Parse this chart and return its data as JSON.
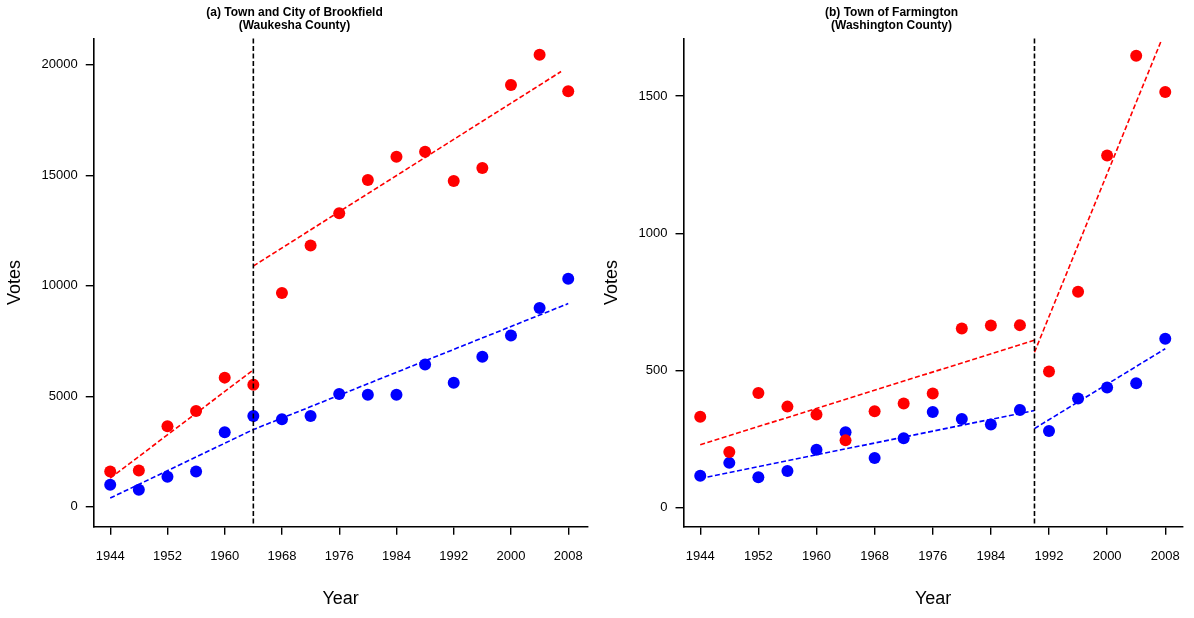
{
  "chart_data": [
    {
      "type": "scatter",
      "title": "(a) Town and City of Brookfield\n(Waukesha County)",
      "xlabel": "Year",
      "ylabel": "Votes",
      "xlim": [
        1941.7,
        2010.7
      ],
      "xticks": [
        1944,
        1952,
        1960,
        1968,
        1976,
        1984,
        1992,
        2000,
        2008
      ],
      "ylim": [
        -900,
        21200
      ],
      "yticks": [
        0,
        5000,
        10000,
        15000,
        20000
      ],
      "grid": false,
      "legend": false,
      "marker": "circle",
      "ref_lines": [
        {
          "axis": "x",
          "value": 1964,
          "color": "#000000",
          "line_style": "dashed"
        }
      ],
      "series": [
        {
          "color": "#ff0000",
          "x": [
            1944,
            1948,
            1952,
            1956,
            1960,
            1964,
            1968,
            1972,
            1976,
            1980,
            1984,
            1988,
            1992,
            1996,
            2000,
            2004,
            2008
          ],
          "values": [
            1600,
            1650,
            3650,
            4340,
            5850,
            5530,
            9680,
            11830,
            13290,
            14790,
            15840,
            16070,
            14750,
            15340,
            19090,
            20460,
            18810
          ]
        },
        {
          "color": "#0000ff",
          "x": [
            1944,
            1948,
            1952,
            1956,
            1960,
            1964,
            1968,
            1972,
            1976,
            1980,
            1984,
            1988,
            1992,
            1996,
            2000,
            2004,
            2008
          ],
          "values": [
            1000,
            780,
            1370,
            1600,
            3380,
            4110,
            3970,
            4110,
            5110,
            5070,
            5070,
            6440,
            5620,
            6800,
            7760,
            9000,
            10320
          ]
        },
        {
          "type": "line",
          "color": "#ff0000",
          "line_style": "dashed",
          "marker": "none",
          "x": [
            1944,
            1964
          ],
          "values": [
            1300,
            6200
          ]
        },
        {
          "type": "line",
          "color": "#ff0000",
          "line_style": "dashed",
          "marker": "none",
          "x": [
            1964,
            2007
          ],
          "values": [
            10900,
            19700
          ]
        },
        {
          "type": "line",
          "color": "#0000ff",
          "line_style": "dashed",
          "marker": "none",
          "x": [
            1944,
            1964,
            2008
          ],
          "values": [
            400,
            3500,
            9200
          ]
        }
      ]
    },
    {
      "type": "scatter",
      "title": "(b) Town of Farmington\n(Washington County)",
      "xlabel": "Year",
      "ylabel": "Votes",
      "xlim": [
        1941.7,
        2010.4
      ],
      "xticks": [
        1944,
        1952,
        1960,
        1968,
        1976,
        1984,
        1992,
        2000,
        2008
      ],
      "ylim": [
        -70,
        1710
      ],
      "yticks": [
        0,
        500,
        1000,
        1500
      ],
      "grid": false,
      "legend": false,
      "marker": "circle",
      "ref_lines": [
        {
          "axis": "x",
          "value": 1990,
          "color": "#000000",
          "line_style": "dashed"
        }
      ],
      "series": [
        {
          "color": "#ff0000",
          "x": [
            1944,
            1948,
            1952,
            1956,
            1960,
            1964,
            1968,
            1972,
            1976,
            1980,
            1984,
            1988,
            1992,
            1996,
            2000,
            2004,
            2008
          ],
          "values": [
            331,
            203,
            418,
            368,
            339,
            245,
            351,
            379,
            416,
            653,
            664,
            665,
            496,
            787,
            1283,
            1647,
            1515
          ]
        },
        {
          "color": "#0000ff",
          "x": [
            1944,
            1948,
            1952,
            1956,
            1960,
            1964,
            1968,
            1972,
            1976,
            1980,
            1984,
            1988,
            1992,
            1996,
            2000,
            2004,
            2008
          ],
          "values": [
            116,
            163,
            111,
            133,
            211,
            275,
            181,
            253,
            348,
            323,
            303,
            356,
            279,
            398,
            438,
            453,
            615
          ]
        },
        {
          "type": "line",
          "color": "#ff0000",
          "line_style": "dashed",
          "marker": "none",
          "x": [
            1944,
            1990
          ],
          "values": [
            229,
            610
          ]
        },
        {
          "type": "line",
          "color": "#ff0000",
          "line_style": "dashed",
          "marker": "none",
          "x": [
            1990,
            2007.5
          ],
          "values": [
            566,
            1705
          ]
        },
        {
          "type": "line",
          "color": "#0000ff",
          "line_style": "dashed",
          "marker": "none",
          "x": [
            1944,
            1990
          ],
          "values": [
            106,
            354
          ]
        },
        {
          "type": "line",
          "color": "#0000ff",
          "line_style": "dashed",
          "marker": "none",
          "x": [
            1990,
            2008
          ],
          "values": [
            288,
            579
          ]
        }
      ]
    }
  ]
}
